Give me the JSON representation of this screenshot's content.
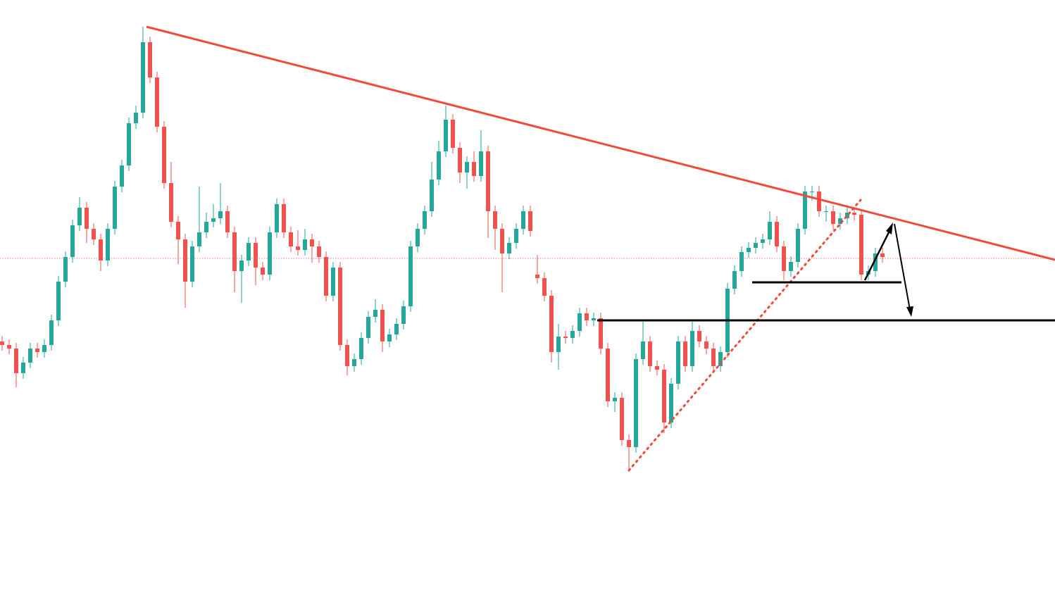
{
  "chart_data": {
    "type": "candlestick",
    "ylim": [
      0,
      855
    ],
    "up_color": "#26a69a",
    "down_color": "#ef5350",
    "candles": [
      [
        370,
        378,
        357,
        365
      ],
      [
        365,
        373,
        352,
        360
      ],
      [
        360,
        368,
        305,
        325
      ],
      [
        325,
        348,
        317,
        340
      ],
      [
        340,
        368,
        332,
        360
      ],
      [
        360,
        368,
        347,
        355
      ],
      [
        355,
        373,
        347,
        365
      ],
      [
        365,
        408,
        357,
        400
      ],
      [
        400,
        463,
        392,
        455
      ],
      [
        455,
        498,
        447,
        490
      ],
      [
        490,
        543,
        482,
        535
      ],
      [
        535,
        575,
        527,
        560
      ],
      [
        560,
        568,
        510,
        530
      ],
      [
        530,
        538,
        507,
        515
      ],
      [
        515,
        523,
        470,
        485
      ],
      [
        485,
        538,
        477,
        530
      ],
      [
        530,
        598,
        522,
        590
      ],
      [
        590,
        628,
        582,
        620
      ],
      [
        620,
        688,
        612,
        680
      ],
      [
        680,
        705,
        672,
        695
      ],
      [
        695,
        817,
        687,
        795
      ],
      [
        795,
        803,
        737,
        745
      ],
      [
        745,
        753,
        667,
        675
      ],
      [
        675,
        683,
        587,
        595
      ],
      [
        595,
        625,
        532,
        540
      ],
      [
        540,
        548,
        480,
        515
      ],
      [
        515,
        523,
        418,
        455
      ],
      [
        455,
        513,
        447,
        505
      ],
      [
        505,
        590,
        497,
        525
      ],
      [
        525,
        553,
        517,
        540
      ],
      [
        540,
        565,
        532,
        545
      ],
      [
        545,
        595,
        537,
        555
      ],
      [
        555,
        563,
        517,
        525
      ],
      [
        525,
        533,
        440,
        470
      ],
      [
        470,
        493,
        425,
        485
      ],
      [
        485,
        518,
        477,
        510
      ],
      [
        510,
        518,
        450,
        475
      ],
      [
        475,
        483,
        457,
        465
      ],
      [
        465,
        533,
        457,
        525
      ],
      [
        525,
        573,
        517,
        565
      ],
      [
        565,
        573,
        517,
        525
      ],
      [
        525,
        533,
        497,
        505
      ],
      [
        505,
        528,
        492,
        500
      ],
      [
        500,
        530,
        492,
        515
      ],
      [
        515,
        523,
        482,
        505
      ],
      [
        505,
        513,
        482,
        490
      ],
      [
        490,
        498,
        427,
        435
      ],
      [
        435,
        483,
        427,
        475
      ],
      [
        475,
        483,
        357,
        365
      ],
      [
        365,
        373,
        322,
        335
      ],
      [
        335,
        353,
        327,
        345
      ],
      [
        345,
        383,
        337,
        375
      ],
      [
        375,
        413,
        367,
        405
      ],
      [
        405,
        430,
        397,
        415
      ],
      [
        415,
        423,
        355,
        370
      ],
      [
        370,
        388,
        362,
        380
      ],
      [
        380,
        403,
        372,
        395
      ],
      [
        395,
        428,
        387,
        420
      ],
      [
        420,
        513,
        412,
        505
      ],
      [
        505,
        538,
        497,
        530
      ],
      [
        530,
        563,
        522,
        555
      ],
      [
        555,
        625,
        547,
        600
      ],
      [
        600,
        655,
        592,
        640
      ],
      [
        640,
        705,
        632,
        685
      ],
      [
        685,
        693,
        637,
        645
      ],
      [
        645,
        653,
        595,
        610
      ],
      [
        610,
        633,
        587,
        625
      ],
      [
        625,
        640,
        597,
        605
      ],
      [
        605,
        670,
        597,
        640
      ],
      [
        640,
        648,
        517,
        555
      ],
      [
        555,
        563,
        500,
        530
      ],
      [
        530,
        538,
        440,
        495
      ],
      [
        495,
        518,
        487,
        510
      ],
      [
        510,
        538,
        502,
        530
      ],
      [
        530,
        563,
        522,
        555
      ],
      [
        555,
        563,
        519,
        527
      ],
      [
        465,
        493,
        452,
        460
      ],
      [
        460,
        468,
        427,
        435
      ],
      [
        435,
        443,
        340,
        355
      ],
      [
        355,
        395,
        330,
        377
      ],
      [
        377,
        385,
        367,
        375
      ],
      [
        375,
        393,
        367,
        385
      ],
      [
        385,
        418,
        377,
        410
      ],
      [
        410,
        418,
        392,
        400
      ],
      [
        400,
        411,
        392,
        403
      ],
      [
        403,
        411,
        352,
        360
      ],
      [
        360,
        368,
        277,
        285
      ],
      [
        285,
        298,
        270,
        290
      ],
      [
        290,
        298,
        222,
        230
      ],
      [
        230,
        238,
        185,
        220
      ],
      [
        220,
        353,
        212,
        345
      ],
      [
        345,
        398,
        337,
        370
      ],
      [
        370,
        378,
        327,
        335
      ],
      [
        335,
        343,
        322,
        330
      ],
      [
        330,
        338,
        240,
        255
      ],
      [
        255,
        318,
        247,
        310
      ],
      [
        310,
        378,
        302,
        370
      ],
      [
        370,
        378,
        327,
        335
      ],
      [
        335,
        398,
        327,
        385
      ],
      [
        385,
        393,
        362,
        370
      ],
      [
        370,
        378,
        352,
        360
      ],
      [
        360,
        368,
        327,
        335
      ],
      [
        335,
        363,
        327,
        355
      ],
      [
        355,
        453,
        347,
        445
      ],
      [
        445,
        478,
        437,
        470
      ],
      [
        470,
        505,
        462,
        497
      ],
      [
        497,
        511,
        489,
        503
      ],
      [
        503,
        518,
        495,
        510
      ],
      [
        510,
        523,
        502,
        515
      ],
      [
        515,
        555,
        507,
        540
      ],
      [
        540,
        548,
        497,
        505
      ],
      [
        505,
        513,
        457,
        470
      ],
      [
        470,
        491,
        462,
        483
      ],
      [
        483,
        538,
        475,
        530
      ],
      [
        530,
        591,
        522,
        583
      ],
      [
        583,
        591,
        570,
        583
      ],
      [
        583,
        591,
        547,
        555
      ],
      [
        555,
        563,
        540,
        555
      ],
      [
        555,
        563,
        529,
        537
      ],
      [
        537,
        553,
        529,
        545
      ],
      [
        545,
        561,
        537,
        553
      ],
      [
        553,
        561,
        542,
        550
      ],
      [
        550,
        558,
        457,
        465
      ],
      [
        465,
        478,
        457,
        470
      ],
      [
        470,
        503,
        462,
        495
      ],
      [
        495,
        503,
        482,
        490
      ]
    ]
  }
}
